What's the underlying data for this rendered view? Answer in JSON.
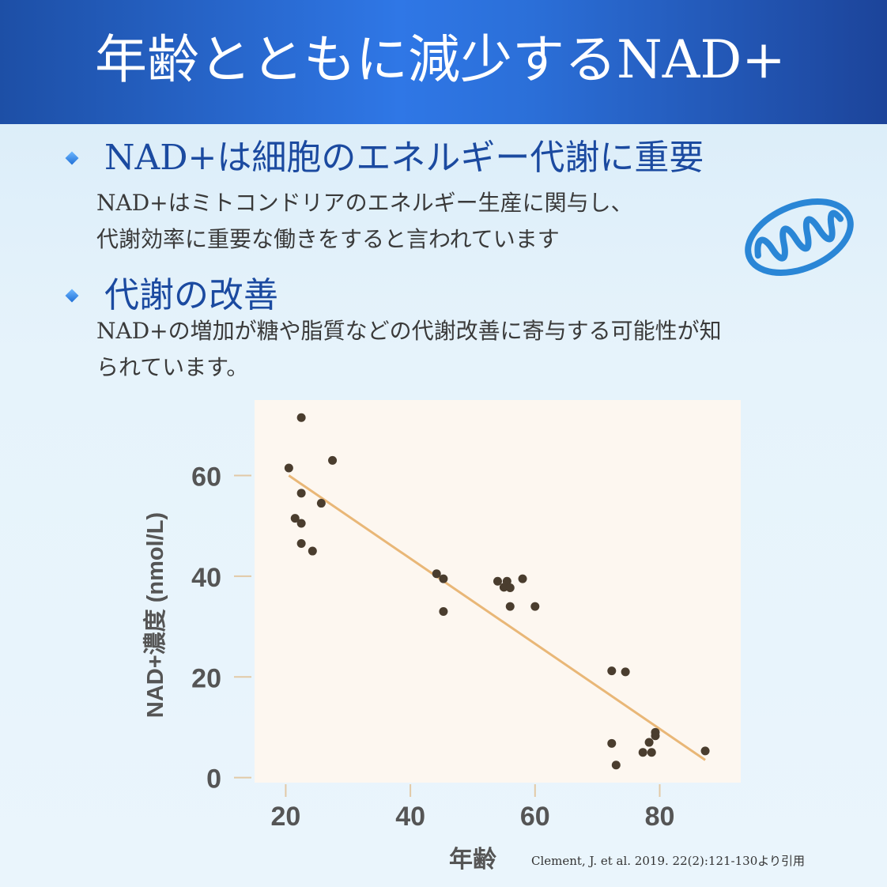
{
  "title": "年齢とともに減少するNAD+",
  "sections": [
    {
      "heading": "NAD+は細胞のエネルギー代謝に重要",
      "lines": [
        "NAD+はミトコンドリアのエネルギー生産に関与し、",
        "代謝効率に重要な働きをすると言われています"
      ]
    },
    {
      "heading": "代謝の改善",
      "lines": [
        "NAD+の増加が糖や脂質などの代謝改善に寄与する可能性が知",
        "られています。"
      ]
    }
  ],
  "icons": {
    "bullet": "diamond-bullet-icon",
    "mitochondria": "mitochondria-icon"
  },
  "colors": {
    "header_blue": "#2f77e6",
    "heading_blue": "#1b4aa0",
    "icon_blue": "#2a86d6",
    "plot_bg": "#fdf7f0",
    "trend": "#e9b777",
    "point": "#4a3d2e"
  },
  "chart_data": {
    "type": "scatter",
    "xlabel": "年齢",
    "ylabel": "NAD+濃度 (nmol/L)",
    "xlim": [
      15,
      93
    ],
    "ylim": [
      -1,
      75
    ],
    "xticks": [
      20,
      40,
      60,
      80
    ],
    "yticks": [
      0,
      20,
      40,
      60
    ],
    "grid": false,
    "points": [
      [
        20.5,
        61.5
      ],
      [
        22.5,
        71.5
      ],
      [
        21.5,
        51.5
      ],
      [
        22.5,
        56.5
      ],
      [
        22.5,
        50.5
      ],
      [
        22.5,
        46.5
      ],
      [
        24.3,
        45.0
      ],
      [
        25.7,
        54.5
      ],
      [
        27.5,
        63.0
      ],
      [
        44.2,
        40.5
      ],
      [
        45.3,
        39.5
      ],
      [
        45.3,
        33.0
      ],
      [
        54.0,
        39.0
      ],
      [
        55.0,
        37.8
      ],
      [
        55.5,
        39.0
      ],
      [
        56.0,
        37.7
      ],
      [
        56.0,
        34.0
      ],
      [
        58.0,
        39.5
      ],
      [
        60.0,
        34.0
      ],
      [
        72.3,
        21.2
      ],
      [
        74.5,
        21.0
      ],
      [
        72.3,
        6.8
      ],
      [
        73.0,
        2.5
      ],
      [
        77.3,
        5.0
      ],
      [
        78.3,
        7.0
      ],
      [
        78.7,
        5.0
      ],
      [
        79.3,
        8.3
      ],
      [
        79.3,
        9.0
      ],
      [
        87.3,
        5.3
      ]
    ],
    "trendline": {
      "x": [
        20.5,
        87.3
      ],
      "y": [
        60.0,
        3.5
      ]
    }
  },
  "citation": "Clement, J. et al. 2019. 22(2):121-130より引用"
}
